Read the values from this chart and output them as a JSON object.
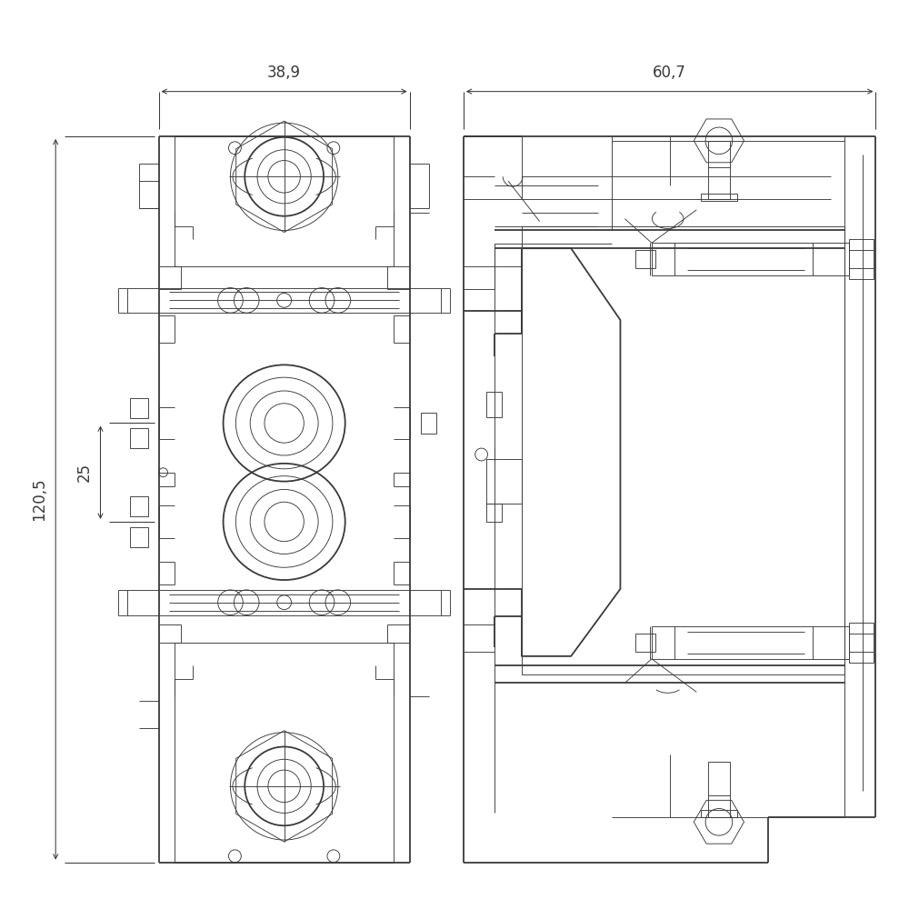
{
  "background_color": "#ffffff",
  "line_color": "#3a3a3a",
  "lw_main": 1.3,
  "lw_thin": 0.65,
  "lw_dim": 0.75,
  "dim_38_9": "38,9",
  "dim_60_7": "60,7",
  "dim_120_5": "120,5",
  "dim_25": "25",
  "font_size_dim": 12
}
